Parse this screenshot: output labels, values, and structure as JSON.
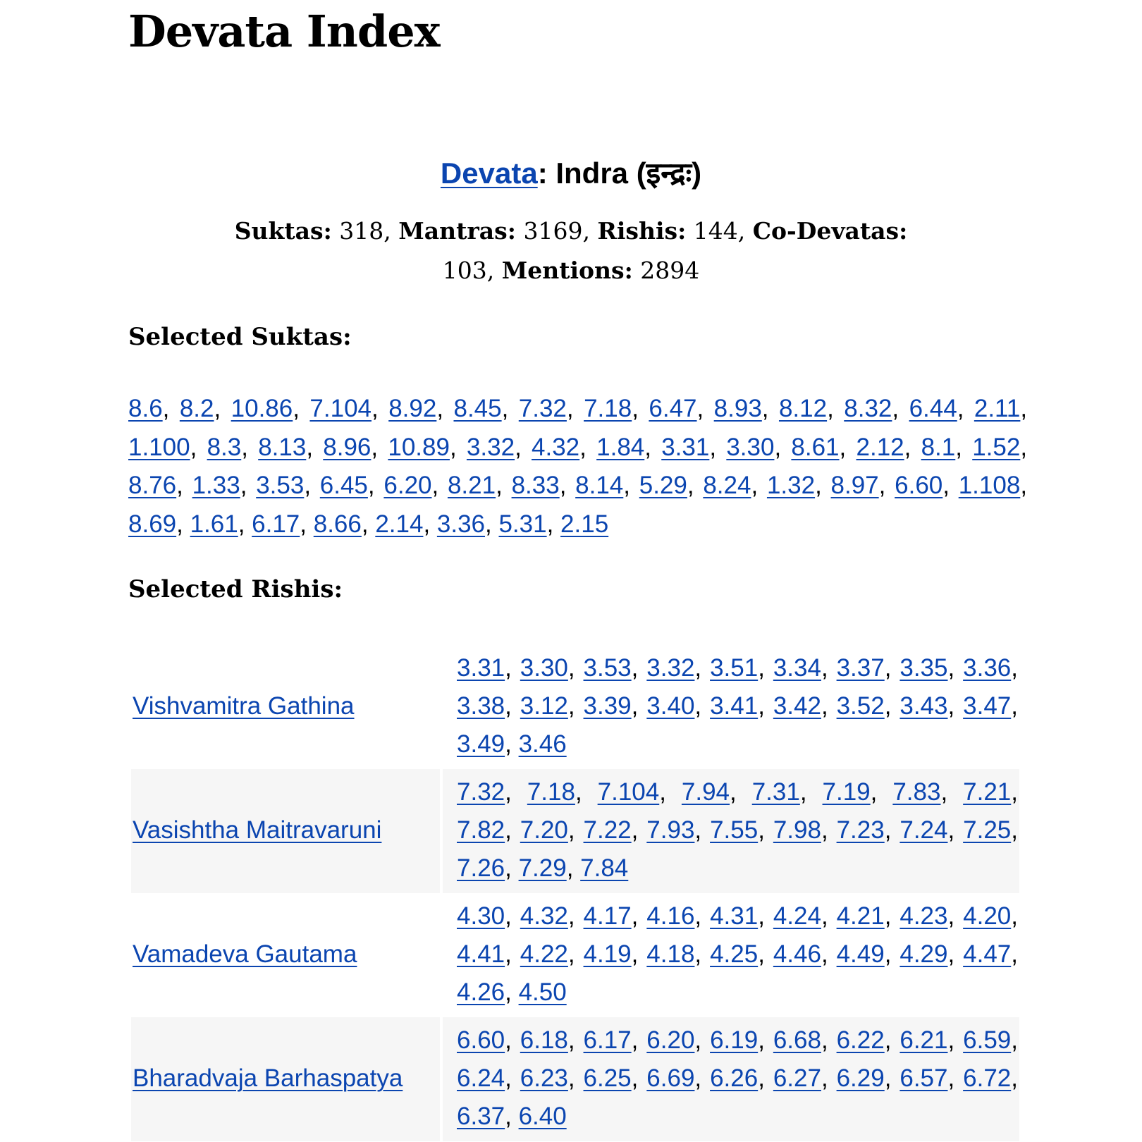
{
  "page": {
    "title": "Devata Index"
  },
  "devata": {
    "link_label": "Devata",
    "name": ": Indra (इन्द्रः)"
  },
  "stats": {
    "suktas_label": "Suktas:",
    "suktas": "318",
    "mantras_label": "Mantras:",
    "mantras": "3169",
    "rishis_label": "Rishis:",
    "rishis": "144",
    "codevatas_label": "Co-Devatas:",
    "codevatas": "103",
    "mentions_label": "Mentions:",
    "mentions": "2894"
  },
  "selected_suktas": {
    "label": "Selected Suktas:",
    "items": [
      "8.6",
      "8.2",
      "10.86",
      "7.104",
      "8.92",
      "8.45",
      "7.32",
      "7.18",
      "6.47",
      "8.93",
      "8.12",
      "8.32",
      "6.44",
      "2.11",
      "1.100",
      "8.3",
      "8.13",
      "8.96",
      "10.89",
      "3.32",
      "4.32",
      "1.84",
      "3.31",
      "3.30",
      "8.61",
      "2.12",
      "8.1",
      "1.52",
      "8.76",
      "1.33",
      "3.53",
      "6.45",
      "6.20",
      "8.21",
      "8.33",
      "8.14",
      "5.29",
      "8.24",
      "1.32",
      "8.97",
      "6.60",
      "1.108",
      "8.69",
      "1.61",
      "6.17",
      "8.66",
      "2.14",
      "3.36",
      "5.31",
      "2.15"
    ]
  },
  "selected_rishis": {
    "label": "Selected Rishis:",
    "rows": [
      {
        "name": "Vishvamitra Gathina",
        "suktas": [
          "3.31",
          "3.30",
          "3.53",
          "3.32",
          "3.51",
          "3.34",
          "3.37",
          "3.35",
          "3.36",
          "3.38",
          "3.12",
          "3.39",
          "3.40",
          "3.41",
          "3.42",
          "3.52",
          "3.43",
          "3.47",
          "3.49",
          "3.46"
        ]
      },
      {
        "name": "Vasishtha Maitravaruni",
        "suktas": [
          "7.32",
          "7.18",
          "7.104",
          "7.94",
          "7.31",
          "7.19",
          "7.83",
          "7.21",
          "7.82",
          "7.20",
          "7.22",
          "7.93",
          "7.55",
          "7.98",
          "7.23",
          "7.24",
          "7.25",
          "7.26",
          "7.29",
          "7.84"
        ]
      },
      {
        "name": "Vamadeva Gautama",
        "suktas": [
          "4.30",
          "4.32",
          "4.17",
          "4.16",
          "4.31",
          "4.24",
          "4.21",
          "4.23",
          "4.20",
          "4.41",
          "4.22",
          "4.19",
          "4.18",
          "4.25",
          "4.46",
          "4.49",
          "4.29",
          "4.47",
          "4.26",
          "4.50"
        ]
      },
      {
        "name": "Bharadvaja Barhaspatya",
        "suktas": [
          "6.60",
          "6.18",
          "6.17",
          "6.20",
          "6.19",
          "6.68",
          "6.22",
          "6.21",
          "6.59",
          "6.24",
          "6.23",
          "6.25",
          "6.69",
          "6.26",
          "6.27",
          "6.29",
          "6.57",
          "6.72",
          "6.37",
          "6.40"
        ]
      }
    ]
  },
  "colors": {
    "link": "#0b45b0",
    "row_alt_bg": "#f6f6f6",
    "text": "#000000"
  }
}
